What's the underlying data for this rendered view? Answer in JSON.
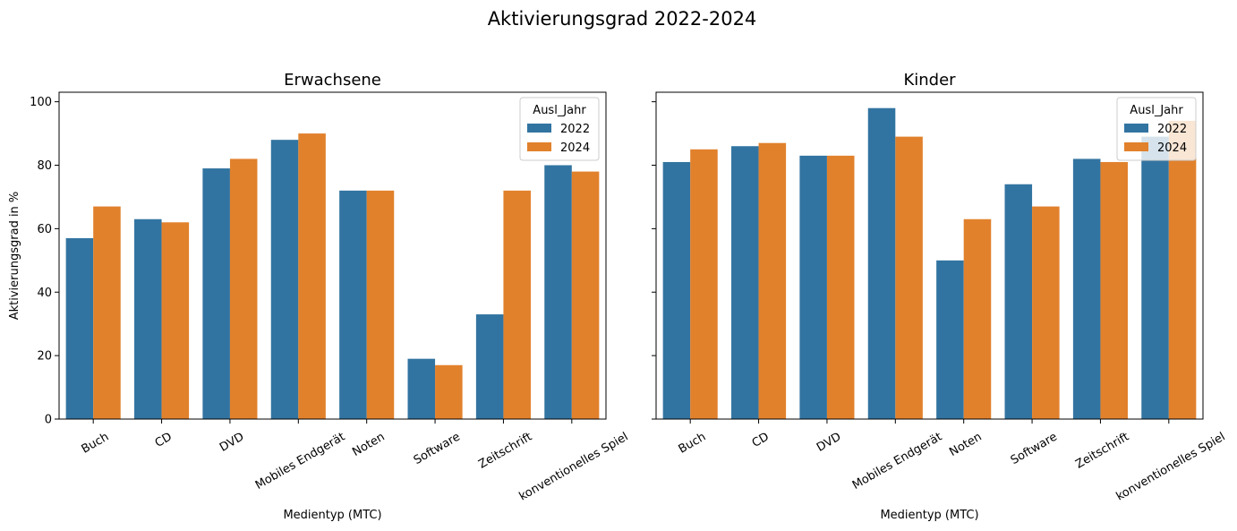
{
  "figure": {
    "title": "Aktivierungsgrad 2022-2024"
  },
  "colors": {
    "2022": "#3274a1",
    "2024": "#e1812c"
  },
  "chart_data": [
    {
      "type": "bar",
      "title": "Erwachsene",
      "xlabel": "Medientyp (MTC)",
      "ylabel": "Aktivierungsgrad in %",
      "ylim": [
        0,
        103
      ],
      "yticks": [
        0,
        20,
        40,
        60,
        80,
        100
      ],
      "categories": [
        "Buch",
        "CD",
        "DVD",
        "Mobiles Endgerät",
        "Noten",
        "Software",
        "Zeitschrift",
        "konventionelles Spiel"
      ],
      "series": [
        {
          "name": "2022",
          "values": [
            57,
            63,
            79,
            88,
            72,
            19,
            33,
            80
          ]
        },
        {
          "name": "2024",
          "values": [
            67,
            62,
            82,
            90,
            72,
            17,
            72,
            78
          ]
        }
      ],
      "legend": {
        "title": "Ausl_Jahr",
        "placement": "top-right"
      }
    },
    {
      "type": "bar",
      "title": "Kinder",
      "xlabel": "Medientyp (MTC)",
      "ylabel": "",
      "ylim": [
        0,
        103
      ],
      "yticks": [
        0,
        20,
        40,
        60,
        80,
        100
      ],
      "categories": [
        "Buch",
        "CD",
        "DVD",
        "Mobiles Endgerät",
        "Noten",
        "Software",
        "Zeitschrift",
        "konventionelles Spiel"
      ],
      "series": [
        {
          "name": "2022",
          "values": [
            81,
            86,
            83,
            98,
            50,
            74,
            82,
            89
          ]
        },
        {
          "name": "2024",
          "values": [
            85,
            87,
            83,
            89,
            63,
            67,
            81,
            94
          ]
        }
      ],
      "legend": {
        "title": "Ausl_Jahr",
        "placement": "top-right"
      }
    }
  ]
}
